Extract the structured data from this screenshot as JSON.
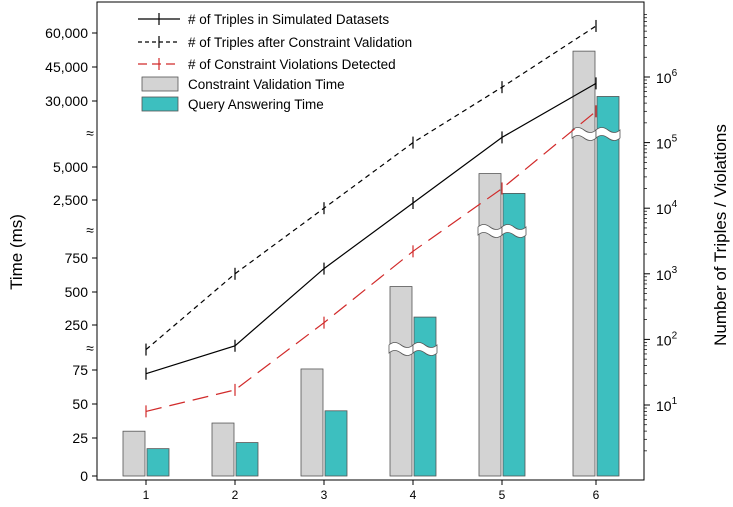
{
  "chart_data": {
    "type": "bar",
    "categories": [
      "1",
      "2",
      "3",
      "4",
      "5",
      "6"
    ],
    "left_axis": {
      "label": "Time (ms)",
      "ticks": [
        "0",
        "25",
        "50",
        "75",
        "250",
        "500",
        "750",
        "2,500",
        "5,000",
        "30,000",
        "45,000",
        "60,000"
      ],
      "scale": "broken"
    },
    "right_axis": {
      "label": "Number of Triples / Violations",
      "scale": "log",
      "ticks": [
        "10",
        "10",
        "10",
        "10",
        "10",
        "10"
      ],
      "tick_exponents": [
        "1",
        "2",
        "3",
        "4",
        "5",
        "6"
      ]
    },
    "legend": {
      "placement": "top-left",
      "entries": [
        "# of Triples in Simulated Datasets",
        "# of Triples after Constraint Validation",
        "# of Constraint Violations Detected",
        "Constraint Validation Time",
        "Query Answering Time"
      ]
    },
    "series": [
      {
        "name": "Constraint Validation Time",
        "kind": "bar",
        "axis": "left",
        "color": "#d3d3d3",
        "values": [
          30,
          36,
          79,
          540,
          4500,
          52000
        ]
      },
      {
        "name": "Query Answering Time",
        "kind": "bar",
        "axis": "left",
        "color": "#3dbfbf",
        "values": [
          18,
          22,
          45,
          310,
          3000,
          32000
        ]
      },
      {
        "name": "# of Triples in Simulated Datasets",
        "kind": "line",
        "axis": "right",
        "style": "solid",
        "color": "#000000",
        "values": [
          30,
          80,
          1200,
          12000,
          120000,
          800000
        ]
      },
      {
        "name": "# of Triples after Constraint Validation",
        "kind": "line",
        "axis": "right",
        "style": "dashed",
        "color": "#000000",
        "values": [
          70,
          1000,
          10000,
          100000,
          700000,
          6000000
        ]
      },
      {
        "name": "# of Constraint Violations Detected",
        "kind": "line",
        "axis": "right",
        "style": "longdash",
        "color": "#d12a2a",
        "values": [
          8,
          17,
          180,
          2200,
          20000,
          300000
        ]
      }
    ]
  }
}
